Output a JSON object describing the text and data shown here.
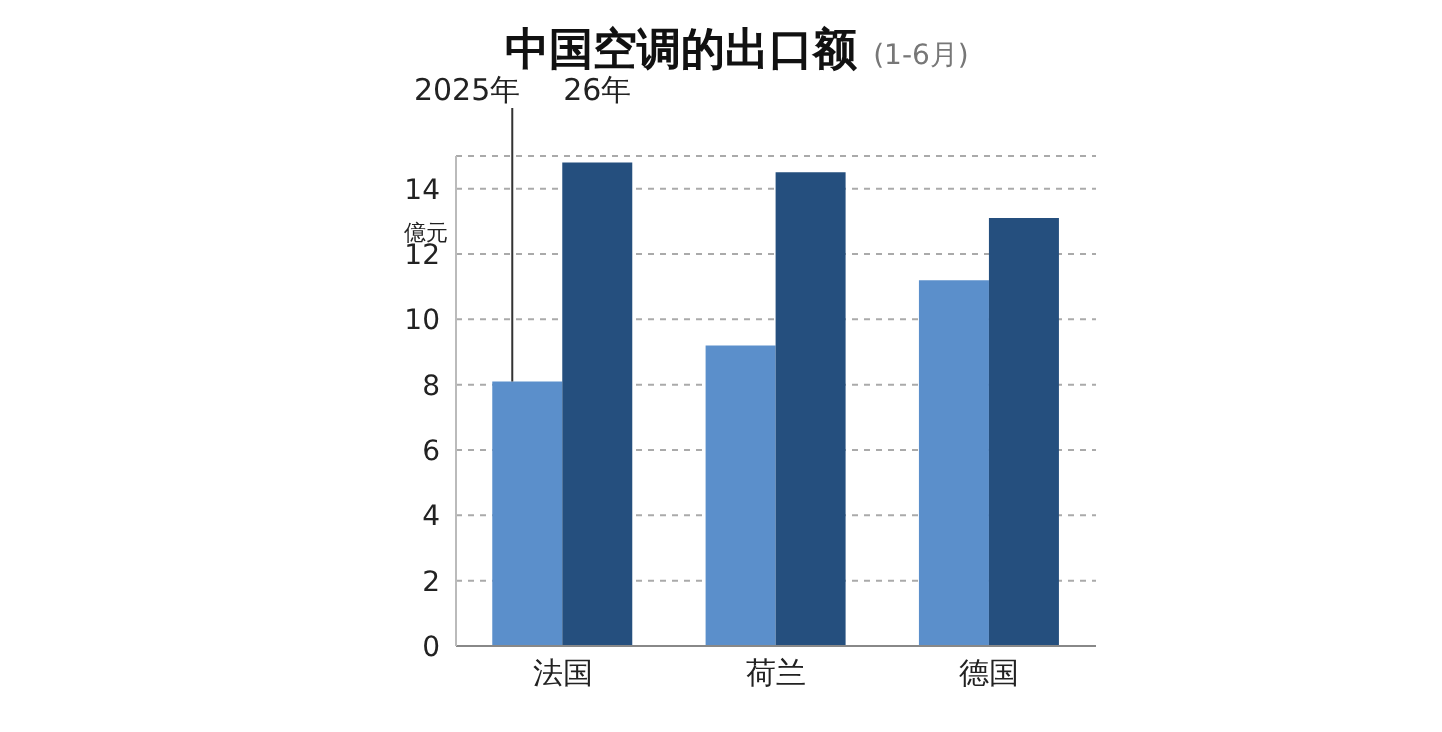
{
  "chart_data": {
    "type": "bar",
    "title": "中国空调的出口额",
    "subtitle": "(1-6月)",
    "ylabel": "億元",
    "categories": [
      "法国",
      "荷兰",
      "德国"
    ],
    "series": [
      {
        "name": "2025年",
        "color": "#5b8fcb",
        "values": [
          8.1,
          9.2,
          11.2
        ]
      },
      {
        "name": "26年",
        "color": "#254f7e",
        "values": [
          14.8,
          14.5,
          13.1
        ]
      }
    ],
    "ylim": [
      0,
      15
    ],
    "yticks": [
      0,
      2,
      4,
      6,
      8,
      10,
      12,
      14
    ],
    "grid": "y",
    "legend": false
  }
}
